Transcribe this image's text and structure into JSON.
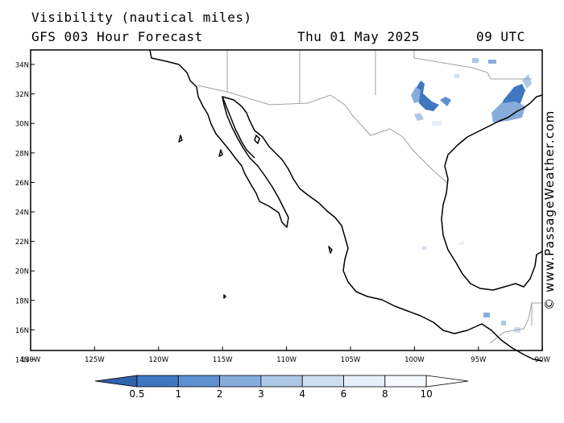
{
  "header": {
    "title": "Visibility (nautical miles)",
    "subtitle": "GFS 003 Hour Forecast",
    "date": "Thu 01 May 2025",
    "time": "09 UTC"
  },
  "watermark": "© www.PassageWeather.com",
  "map": {
    "lat_labels": [
      "34N",
      "32N",
      "30N",
      "28N",
      "26N",
      "24N",
      "22N",
      "20N",
      "18N",
      "16N",
      "14N"
    ],
    "lon_labels": [
      "130W",
      "125W",
      "120W",
      "115W",
      "110W",
      "105W",
      "100W",
      "95W",
      "90W"
    ],
    "coastline_color": "#000000",
    "border_color": "#a0a0a0",
    "fill_color": "#ffffff"
  },
  "legend": {
    "labels": [
      "0.5",
      "1",
      "2",
      "3",
      "4",
      "6",
      "8",
      "10"
    ],
    "colors": [
      "#2f63ad",
      "#3f77c0",
      "#5f90cf",
      "#86acdb",
      "#adc8e7",
      "#cedff1",
      "#e6eff9",
      "#f7faff",
      "#ffffff"
    ]
  }
}
